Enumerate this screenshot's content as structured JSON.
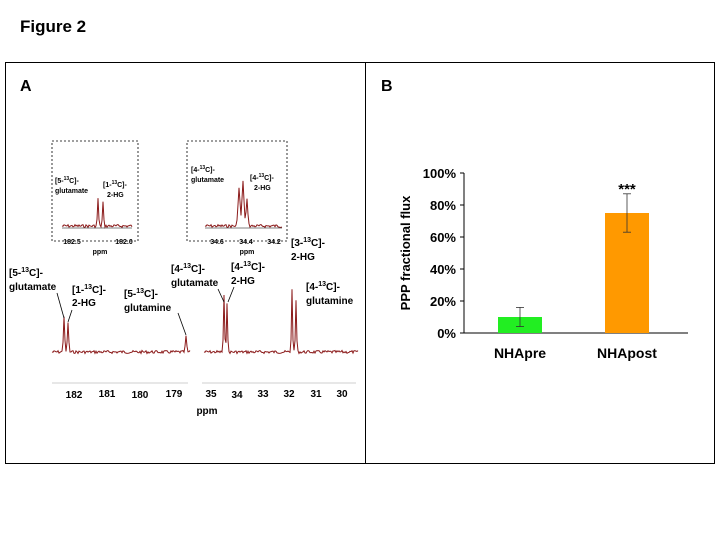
{
  "figure_title": "Figure 2",
  "panel_a": {
    "label": "A",
    "spectrum_axis": {
      "ticks_left": [
        "182",
        "181",
        "180",
        "179"
      ],
      "ticks_right": [
        "35",
        "34",
        "33",
        "32",
        "31",
        "30"
      ],
      "unit": "ppm"
    },
    "peak_labels": {
      "glu5": [
        "[5-",
        "13",
        "C]-",
        "glutamate"
      ],
      "hg1": [
        "[1-",
        "13",
        "C]-",
        "2-HG"
      ],
      "gln5": [
        "[5-",
        "13",
        "C]-",
        "glutamine"
      ],
      "glu4": [
        "[4-",
        "13",
        "C]-",
        "glutamate"
      ],
      "hg4": [
        "[4-",
        "13",
        "C]-",
        "2-HG"
      ],
      "hg3": [
        "[3-",
        "13",
        "C]-",
        "2-HG"
      ],
      "gln4": [
        "[4-",
        "13",
        "C]-",
        "glutamine"
      ]
    },
    "inset_left": {
      "labels": {
        "glu5": [
          "[5-",
          "13",
          "C]-",
          "glutamate"
        ],
        "hg1": [
          "[1-",
          "13",
          "C]-",
          "2-HG"
        ]
      },
      "ticks": [
        "182.5",
        "182.0"
      ],
      "unit": "ppm"
    },
    "inset_right": {
      "labels": {
        "glu4": [
          "[4-",
          "13",
          "C]-",
          "glutamate"
        ],
        "hg4": [
          "[4-",
          "13",
          "C]-",
          "2-HG"
        ]
      },
      "ticks": [
        "34.6",
        "34.4",
        "34.2"
      ],
      "unit": "ppm"
    },
    "line_color": "#8b1a1a"
  },
  "panel_b": {
    "label": "B",
    "significance": "***"
  },
  "chart_data": {
    "type": "bar",
    "title": "",
    "xlabel": "",
    "ylabel": "PPP fractional flux",
    "categories": [
      "NHApre",
      "NHApost"
    ],
    "values": [
      0.1,
      0.75
    ],
    "errors": [
      0.06,
      0.12
    ],
    "colors": [
      "#22ee22",
      "#ff9900"
    ],
    "ylim": [
      0,
      1
    ],
    "yticks": [
      0,
      0.2,
      0.4,
      0.6,
      0.8,
      1.0
    ],
    "ytick_labels": [
      "0%",
      "20%",
      "40%",
      "60%",
      "80%",
      "100%"
    ],
    "grid": false
  }
}
